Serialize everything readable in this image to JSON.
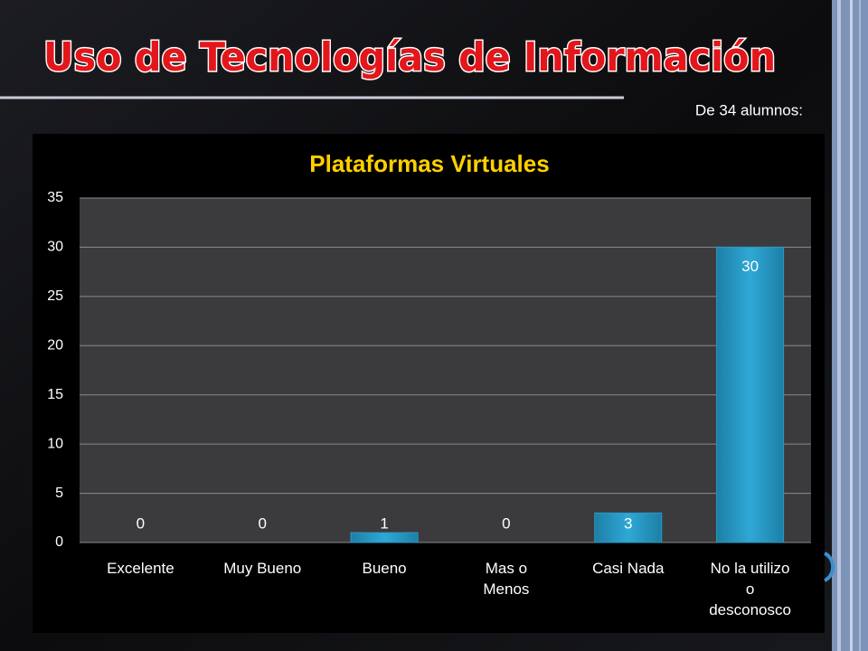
{
  "slide_title": "Uso de Tecnologías de Información",
  "subtitle": "De 34 alumnos:",
  "chart_data": {
    "type": "bar",
    "title": "Plataformas Virtuales",
    "categories": [
      "Excelente",
      "Muy Bueno",
      "Bueno",
      "Mas o Menos",
      "Casi Nada",
      "No la utilizo o desconosco"
    ],
    "values": [
      0,
      0,
      1,
      0,
      3,
      30
    ],
    "color": "#2a9bc6",
    "ylim": [
      0,
      35
    ],
    "yticks": [
      0,
      5,
      10,
      15,
      20,
      25,
      30,
      35
    ],
    "grid": true
  }
}
